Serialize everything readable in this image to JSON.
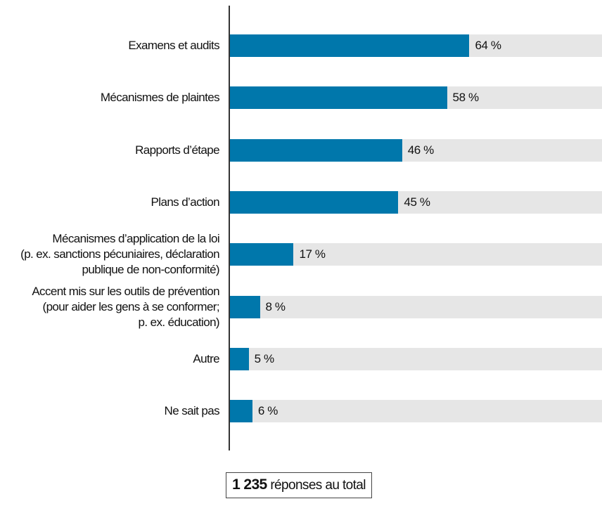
{
  "chart_data": {
    "type": "bar",
    "orientation": "horizontal",
    "categories": [
      [
        "Examens et audits"
      ],
      [
        "Mécanismes de plaintes"
      ],
      [
        "Rapports d’étape"
      ],
      [
        "Plans d’action"
      ],
      [
        "Mécanismes d’application de la loi",
        "(p. ex. sanctions pécuniaires, déclaration",
        "publique de non-conformité)"
      ],
      [
        "Accent mis sur les outils de prévention",
        "(pour aider les gens à se conformer;",
        "p. ex. éducation)"
      ],
      [
        "Autre"
      ],
      [
        "Ne sait pas"
      ]
    ],
    "values": [
      64,
      58,
      46,
      45,
      17,
      8,
      5,
      6
    ],
    "value_labels": [
      "64 %",
      "58 %",
      "46 %",
      "45 %",
      "17 %",
      "8 %",
      "5 %",
      "6 %"
    ],
    "xlim": [
      0,
      100
    ],
    "unit": "%",
    "grid": false,
    "colors": {
      "bar": "#0077ab",
      "track": "#e6e6e6"
    }
  },
  "total": {
    "count": "1 235",
    "label": "réponses au total"
  }
}
